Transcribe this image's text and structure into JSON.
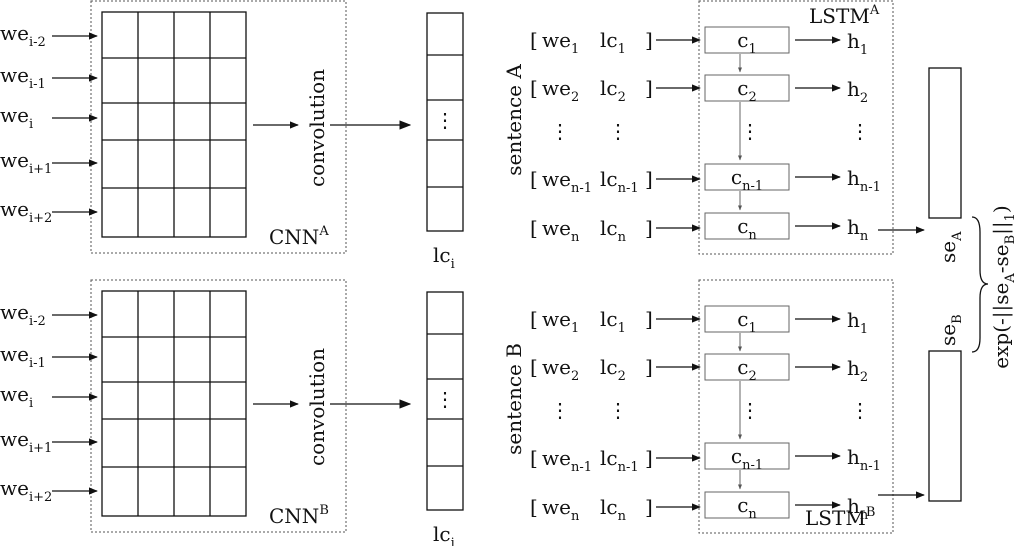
{
  "inputs": [
    {
      "base": "we",
      "sub": "i-2"
    },
    {
      "base": "we",
      "sub": "i-1"
    },
    {
      "base": "we",
      "sub": "i"
    },
    {
      "base": "we",
      "sub": "i+1"
    },
    {
      "base": "we",
      "sub": "i+2"
    }
  ],
  "convolution_label": "convolution",
  "dots": "⋮",
  "output": {
    "base": "lc",
    "sub": "i"
  },
  "branches": [
    {
      "cnn": {
        "base": "CNN",
        "sup": "A"
      },
      "lstm": {
        "base": "LSTM",
        "sup": "A"
      },
      "sentence": "sentence A",
      "se": {
        "base": "se",
        "sub": "A"
      }
    },
    {
      "cnn": {
        "base": "CNN",
        "sup": "B"
      },
      "lstm": {
        "base": "LSTM",
        "sup": "B"
      },
      "sentence": "sentence B",
      "se": {
        "base": "se",
        "sub": "B"
      }
    }
  ],
  "rows": [
    {
      "we": "1",
      "lc": "1",
      "c": "1",
      "h": "1"
    },
    {
      "we": "2",
      "lc": "2",
      "c": "2",
      "h": "2"
    },
    {
      "we": "n-1",
      "lc": "n-1",
      "c": "n-1",
      "h": "n-1"
    },
    {
      "we": "n",
      "lc": "n",
      "c": "n",
      "h": "n"
    }
  ],
  "row_symbols": {
    "we": "we",
    "lc": "lc",
    "c": "c",
    "h": "h",
    "open": "[",
    "close": "]"
  },
  "similarity": {
    "prefix": "exp(-||se",
    "sub_a": "A",
    "minus": "-se",
    "sub_b": "B",
    "suffix": "||",
    "norm_sub": "1",
    "close": ")"
  }
}
